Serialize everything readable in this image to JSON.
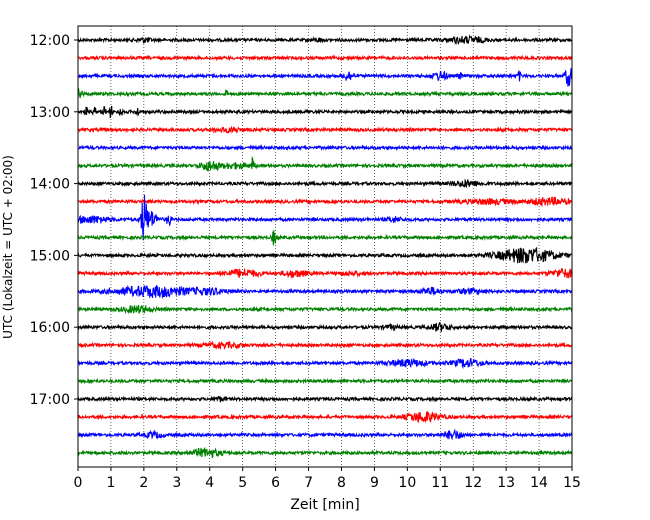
{
  "chart_data": {
    "type": "line",
    "title": "",
    "xlabel": "Zeit  [min]",
    "ylabel": "UTC (Lokalzeit = UTC + 02:00)",
    "xlim": [
      0,
      15
    ],
    "x_ticks": [
      "0",
      "1",
      "2",
      "3",
      "4",
      "5",
      "6",
      "7",
      "8",
      "9",
      "10",
      "11",
      "12",
      "13",
      "14",
      "15"
    ],
    "y_ticks": [
      "12:00",
      "13:00",
      "14:00",
      "15:00",
      "16:00",
      "17:00"
    ],
    "y_tick_traces": [
      0,
      4,
      8,
      12,
      16,
      20
    ],
    "grid": {
      "vertical": true,
      "style": "dotted"
    },
    "colors": [
      "#000000",
      "#ff0000",
      "#0000ff",
      "#008000"
    ],
    "trace_interval_min": 15,
    "traces": [
      {
        "start": "12:00",
        "color": "#000000",
        "events": [
          {
            "t": 2.0,
            "amp": 0.25,
            "w": 0.15
          },
          {
            "t": 7.3,
            "amp": 0.2,
            "w": 0.1
          },
          {
            "t": 11.8,
            "amp": 0.35,
            "w": 0.4
          }
        ]
      },
      {
        "start": "12:15",
        "color": "#ff0000",
        "events": []
      },
      {
        "start": "12:30",
        "color": "#0000ff",
        "events": [
          {
            "t": 8.2,
            "amp": 0.6,
            "w": 0.1
          },
          {
            "t": 11.0,
            "amp": 0.5,
            "w": 0.15
          },
          {
            "t": 11.6,
            "amp": 0.35,
            "w": 0.05
          },
          {
            "t": 13.4,
            "amp": 0.6,
            "w": 0.03
          },
          {
            "t": 14.9,
            "amp": 1.2,
            "w": 0.08
          }
        ]
      },
      {
        "start": "12:45",
        "color": "#008000",
        "events": [
          {
            "t": 0.05,
            "amp": 0.8,
            "w": 0.05
          },
          {
            "t": 4.5,
            "amp": 0.5,
            "w": 0.03
          }
        ]
      },
      {
        "start": "13:00",
        "color": "#000000",
        "events": [
          {
            "t": 0.25,
            "amp": 0.6,
            "w": 0.03
          },
          {
            "t": 0.5,
            "amp": 0.6,
            "w": 0.03
          },
          {
            "t": 0.8,
            "amp": 0.6,
            "w": 0.03
          },
          {
            "t": 1.0,
            "amp": 0.8,
            "w": 0.03
          },
          {
            "t": 1.3,
            "amp": 0.6,
            "w": 0.03
          },
          {
            "t": 1.8,
            "amp": 0.55,
            "w": 0.03
          }
        ]
      },
      {
        "start": "13:15",
        "color": "#ff0000",
        "events": [
          {
            "t": 4.6,
            "amp": 0.2,
            "w": 0.3
          }
        ]
      },
      {
        "start": "13:30",
        "color": "#0000ff",
        "events": []
      },
      {
        "start": "13:45",
        "color": "#008000",
        "events": [
          {
            "t": 4.0,
            "amp": 0.6,
            "w": 0.2
          },
          {
            "t": 4.8,
            "amp": 0.3,
            "w": 0.3
          },
          {
            "t": 5.3,
            "amp": 0.9,
            "w": 0.03
          }
        ]
      },
      {
        "start": "14:00",
        "color": "#000000",
        "events": [
          {
            "t": 11.8,
            "amp": 0.35,
            "w": 0.3
          }
        ]
      },
      {
        "start": "14:15",
        "color": "#ff0000",
        "events": [
          {
            "t": 12.5,
            "amp": 0.25,
            "w": 0.6
          },
          {
            "t": 14.3,
            "amp": 0.4,
            "w": 0.4
          }
        ]
      },
      {
        "start": "14:30",
        "color": "#0000ff",
        "events": [
          {
            "t": 0.4,
            "amp": 0.4,
            "w": 0.4
          },
          {
            "t": 2.0,
            "amp": 2.7,
            "w": 0.06
          },
          {
            "t": 2.2,
            "amp": 1.0,
            "w": 0.15
          },
          {
            "t": 2.75,
            "amp": 0.9,
            "w": 0.04
          },
          {
            "t": 9.6,
            "amp": 0.3,
            "w": 0.15
          }
        ]
      },
      {
        "start": "14:45",
        "color": "#008000",
        "events": [
          {
            "t": 5.95,
            "amp": 1.0,
            "w": 0.04
          }
        ]
      },
      {
        "start": "15:00",
        "color": "#000000",
        "events": [
          {
            "t": 13.6,
            "amp": 0.9,
            "w": 0.6
          }
        ]
      },
      {
        "start": "15:15",
        "color": "#ff0000",
        "events": [
          {
            "t": 5.0,
            "amp": 0.45,
            "w": 0.35
          },
          {
            "t": 6.6,
            "amp": 0.4,
            "w": 0.25
          },
          {
            "t": 8.3,
            "amp": 0.2,
            "w": 0.25
          },
          {
            "t": 14.8,
            "amp": 0.5,
            "w": 0.3
          }
        ]
      },
      {
        "start": "15:30",
        "color": "#0000ff",
        "events": [
          {
            "t": 2.3,
            "amp": 0.65,
            "w": 0.8
          },
          {
            "t": 4.0,
            "amp": 0.3,
            "w": 0.35
          },
          {
            "t": 10.7,
            "amp": 0.4,
            "w": 0.2
          },
          {
            "t": 11.9,
            "amp": 0.25,
            "w": 0.3
          }
        ]
      },
      {
        "start": "15:45",
        "color": "#008000",
        "events": [
          {
            "t": 1.8,
            "amp": 0.4,
            "w": 0.3
          }
        ]
      },
      {
        "start": "16:00",
        "color": "#000000",
        "events": [
          {
            "t": 11.0,
            "amp": 0.45,
            "w": 0.2
          },
          {
            "t": 9.5,
            "amp": 0.2,
            "w": 0.15
          }
        ]
      },
      {
        "start": "16:15",
        "color": "#ff0000",
        "events": [
          {
            "t": 4.4,
            "amp": 0.25,
            "w": 0.4
          }
        ]
      },
      {
        "start": "16:30",
        "color": "#0000ff",
        "events": [
          {
            "t": 10.0,
            "amp": 0.4,
            "w": 0.4
          },
          {
            "t": 11.8,
            "amp": 0.45,
            "w": 0.3
          }
        ]
      },
      {
        "start": "16:45",
        "color": "#008000",
        "events": []
      },
      {
        "start": "17:00",
        "color": "#000000",
        "events": [
          {
            "t": 4.3,
            "amp": 0.25,
            "w": 0.1
          }
        ]
      },
      {
        "start": "17:15",
        "color": "#ff0000",
        "events": [
          {
            "t": 10.5,
            "amp": 0.6,
            "w": 0.35
          }
        ]
      },
      {
        "start": "17:30",
        "color": "#0000ff",
        "events": [
          {
            "t": 2.3,
            "amp": 0.3,
            "w": 0.2
          },
          {
            "t": 11.4,
            "amp": 0.5,
            "w": 0.2
          }
        ]
      },
      {
        "start": "17:45",
        "color": "#008000",
        "events": [
          {
            "t": 3.9,
            "amp": 0.5,
            "w": 0.3
          }
        ]
      }
    ]
  }
}
